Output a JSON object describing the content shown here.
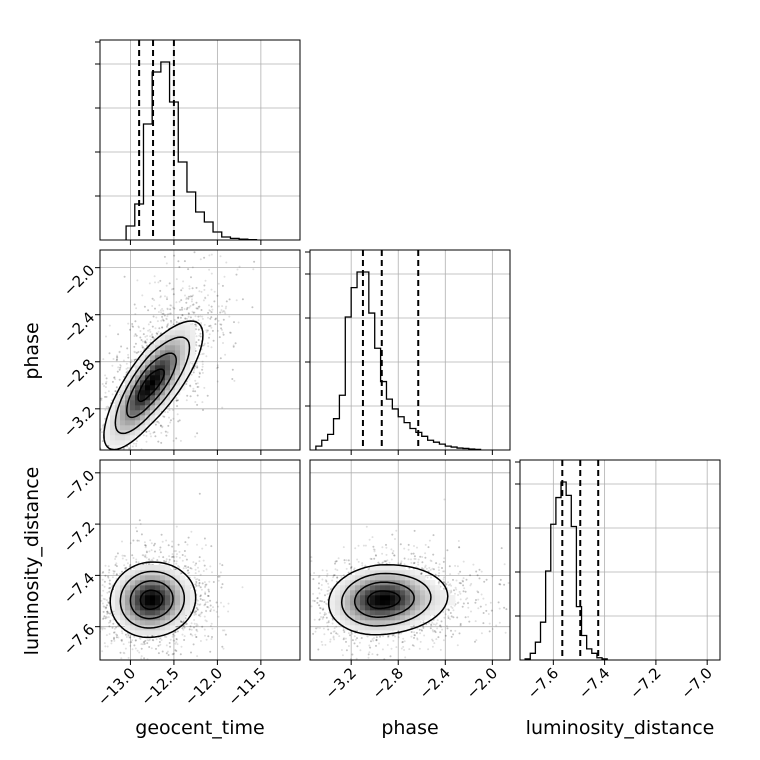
{
  "chart_data": {
    "type": "corner",
    "parameters": [
      "geocent_time",
      "phase",
      "luminosity_distance"
    ],
    "xlabels": [
      "geocent_time",
      "phase",
      "luminosity_distance"
    ],
    "ylabels": [
      "",
      "phase",
      "luminosity_distance"
    ],
    "ranges": {
      "geocent_time": [
        -13.35,
        -11.05
      ],
      "phase": [
        -3.55,
        -1.85
      ],
      "luminosity_distance": [
        -7.73,
        -6.95
      ]
    },
    "ticks": {
      "geocent_time": [
        -13.0,
        -12.5,
        -12.0,
        -11.5
      ],
      "phase": [
        -3.2,
        -2.8,
        -2.4,
        -2.0
      ],
      "luminosity_distance": [
        -7.6,
        -7.4,
        -7.2,
        -7.0
      ]
    },
    "tick_labels": {
      "geocent_time": [
        "−13.0",
        "−12.5",
        "−12.0",
        "−11.5"
      ],
      "phase": [
        "−3.2",
        "−2.8",
        "−2.4",
        "−2.0"
      ],
      "luminosity_distance": [
        "−7.6",
        "−7.4",
        "−7.2",
        "−7.0"
      ]
    },
    "histograms": {
      "geocent_time": {
        "bin_start": -13.05,
        "bin_width": 0.1,
        "counts": [
          0.07,
          0.18,
          0.58,
          0.84,
          0.89,
          0.69,
          0.39,
          0.24,
          0.14,
          0.09,
          0.04,
          0.015,
          0.008,
          0.004,
          0.002
        ]
      },
      "phase": {
        "bin_start": -3.5,
        "bin_width": 0.05,
        "counts": [
          0.02,
          0.05,
          0.08,
          0.16,
          0.28,
          0.68,
          0.83,
          0.91,
          0.91,
          0.7,
          0.52,
          0.35,
          0.26,
          0.21,
          0.17,
          0.14,
          0.11,
          0.09,
          0.07,
          0.05,
          0.04,
          0.03,
          0.02,
          0.015,
          0.01,
          0.008,
          0.005,
          0.003
        ]
      },
      "luminosity_distance": {
        "bin_start": -7.71,
        "bin_width": 0.02,
        "counts": [
          0.005,
          0.03,
          0.08,
          0.17,
          0.4,
          0.61,
          0.73,
          0.8,
          0.74,
          0.6,
          0.24,
          0.11,
          0.05,
          0.03,
          0.01,
          0.005
        ]
      }
    },
    "quantiles": {
      "geocent_time": [
        -12.9,
        -12.74,
        -12.5
      ],
      "phase": [
        -3.1,
        -2.94,
        -2.63
      ],
      "luminosity_distance": [
        -7.565,
        -7.495,
        -7.425
      ]
    },
    "density_2d": [
      {
        "x": "geocent_time",
        "y": "phase",
        "peak": [
          -12.78,
          -3.0
        ],
        "sx": 0.25,
        "sy": 0.26,
        "rho": 0.78,
        "tail": [
          0.8,
          0.8
        ]
      },
      {
        "x": "geocent_time",
        "y": "luminosity_distance",
        "peak": [
          -12.77,
          -7.495
        ],
        "sx": 0.22,
        "sy": 0.07,
        "rho": 0.05,
        "tail": [
          0.6,
          0
        ]
      },
      {
        "x": "phase",
        "y": "luminosity_distance",
        "peak": [
          -2.95,
          -7.495
        ],
        "sx": 0.21,
        "sy": 0.065,
        "rho": 0.1,
        "tail": [
          1.4,
          0
        ]
      }
    ],
    "contour_levels": [
      0.118,
      0.393,
      0.675,
      0.865
    ],
    "grid": true
  }
}
